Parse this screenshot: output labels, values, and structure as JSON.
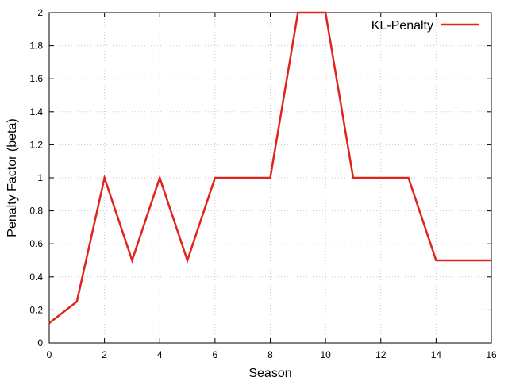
{
  "chart_data": {
    "type": "line",
    "title": "",
    "xlabel": "Season",
    "ylabel": "Penalty Factor (beta)",
    "xlim": [
      0,
      16
    ],
    "ylim": [
      0,
      2
    ],
    "x_ticks": [
      "0",
      "2",
      "4",
      "6",
      "8",
      "10",
      "12",
      "14",
      "16"
    ],
    "y_ticks": [
      "0",
      "0.2",
      "0.4",
      "0.6",
      "0.8",
      "1",
      "1.2",
      "1.4",
      "1.6",
      "1.8",
      "2"
    ],
    "grid": true,
    "legend_position": "top-right",
    "series": [
      {
        "name": "KL-Penalty",
        "color": "#e0241b",
        "x": [
          0,
          1,
          2,
          3,
          4,
          5,
          6,
          7,
          8,
          9,
          10,
          11,
          12,
          13,
          14,
          15,
          16
        ],
        "y": [
          0.12,
          0.25,
          1,
          0.5,
          1,
          0.5,
          1,
          1,
          1,
          2,
          2,
          1,
          1,
          1,
          0.5,
          0.5,
          0.5
        ]
      }
    ]
  }
}
